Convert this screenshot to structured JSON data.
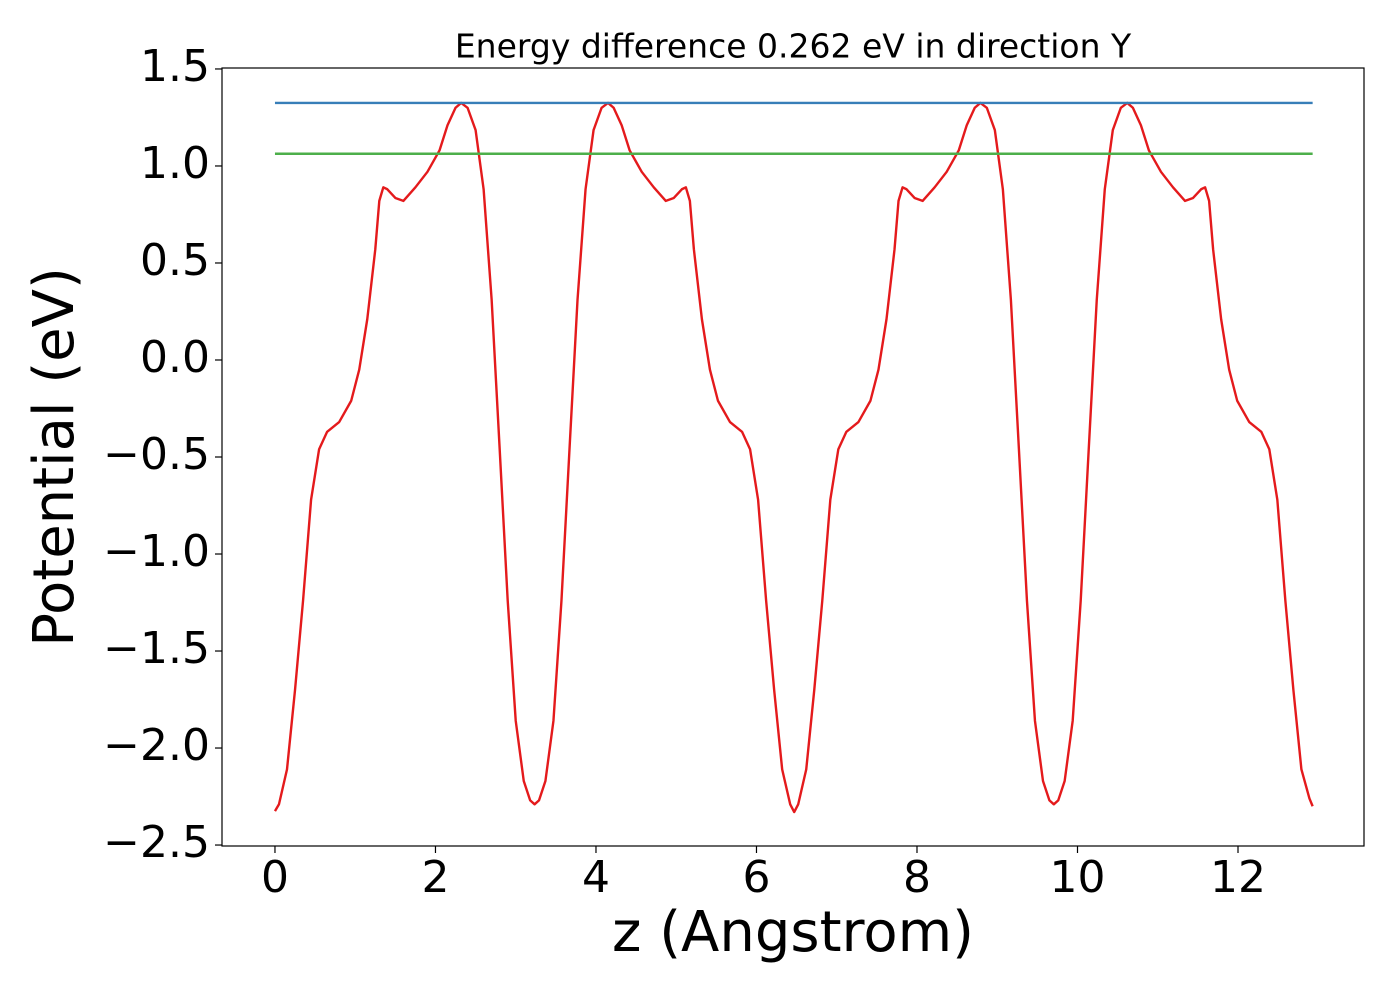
{
  "chart_data": {
    "type": "line",
    "title": "Energy difference 0.262 eV in direction Y",
    "xlabel": "z (Angstrom)",
    "ylabel": "Potential (eV)",
    "xlim": [
      -0.66,
      13.57
    ],
    "ylim": [
      -2.505,
      1.505
    ],
    "xticks": [
      0,
      2,
      4,
      6,
      8,
      10,
      12
    ],
    "yticks": [
      {
        "value": 1.5,
        "label": "1.5"
      },
      {
        "value": 1,
        "label": "1.0"
      },
      {
        "value": 0.5,
        "label": "0.5"
      },
      {
        "value": 0,
        "label": "0.0"
      },
      {
        "value": -0.5,
        "label": "−0.5"
      },
      {
        "value": -1,
        "label": "−1.0"
      },
      {
        "value": -1.5,
        "label": "−1.5"
      },
      {
        "value": -2,
        "label": "−2.0"
      },
      {
        "value": -2.5,
        "label": "−2.5"
      }
    ],
    "grid": false,
    "series": [
      {
        "color": "#e41a1c",
        "x": [
          0,
          0.05,
          0.15,
          0.25,
          0.35,
          0.45,
          0.55,
          0.65,
          0.8,
          0.95,
          1.05,
          1.15,
          1.25,
          1.3,
          1.35,
          1.4,
          1.5,
          1.6,
          1.75,
          1.9,
          2.05,
          2.15,
          2.25,
          2.32,
          2.4,
          2.5,
          2.6,
          2.7,
          2.8,
          2.9,
          3.0,
          3.1,
          3.18,
          3.235,
          3.29,
          3.37,
          3.47,
          3.57,
          3.67,
          3.77,
          3.87,
          3.97,
          4.07,
          4.15,
          4.22,
          4.32,
          4.42,
          4.57,
          4.72,
          4.87,
          4.97,
          5.07,
          5.12,
          5.17,
          5.22,
          5.32,
          5.42,
          5.52,
          5.67,
          5.82,
          5.92,
          6.02,
          6.12,
          6.22,
          6.32,
          6.42,
          6.47,
          6.52,
          6.62,
          6.72,
          6.82,
          6.92,
          7.02,
          7.12,
          7.27,
          7.42,
          7.52,
          7.62,
          7.72,
          7.77,
          7.82,
          7.87,
          7.97,
          8.07,
          8.22,
          8.37,
          8.52,
          8.62,
          8.72,
          8.79,
          8.87,
          8.97,
          9.07,
          9.17,
          9.27,
          9.37,
          9.47,
          9.57,
          9.65,
          9.705,
          9.76,
          9.84,
          9.94,
          10.04,
          10.14,
          10.24,
          10.34,
          10.44,
          10.54,
          10.62,
          10.69,
          10.79,
          10.89,
          11.04,
          11.19,
          11.34,
          11.44,
          11.54,
          11.59,
          11.64,
          11.69,
          11.79,
          11.89,
          11.99,
          12.14,
          12.29,
          12.39,
          12.49,
          12.59,
          12.69,
          12.79,
          12.89,
          12.93
        ],
        "values": [
          -2.325,
          -2.29,
          -2.11,
          -1.7,
          -1.24,
          -0.72,
          -0.46,
          -0.37,
          -0.32,
          -0.21,
          -0.05,
          0.21,
          0.57,
          0.82,
          0.89,
          0.88,
          0.835,
          0.82,
          0.89,
          0.97,
          1.08,
          1.21,
          1.3,
          1.325,
          1.3,
          1.185,
          0.88,
          0.31,
          -0.46,
          -1.24,
          -1.86,
          -2.17,
          -2.27,
          -2.29,
          -2.27,
          -2.17,
          -1.86,
          -1.24,
          -0.46,
          0.31,
          0.88,
          1.185,
          1.3,
          1.325,
          1.3,
          1.21,
          1.08,
          0.97,
          0.89,
          0.82,
          0.835,
          0.88,
          0.89,
          0.82,
          0.57,
          0.21,
          -0.05,
          -0.21,
          -0.32,
          -0.37,
          -0.46,
          -0.72,
          -1.24,
          -1.7,
          -2.11,
          -2.29,
          -2.33,
          -2.29,
          -2.11,
          -1.7,
          -1.24,
          -0.72,
          -0.46,
          -0.37,
          -0.32,
          -0.21,
          -0.05,
          0.21,
          0.57,
          0.82,
          0.89,
          0.88,
          0.835,
          0.82,
          0.89,
          0.97,
          1.08,
          1.21,
          1.3,
          1.325,
          1.3,
          1.185,
          0.88,
          0.31,
          -0.46,
          -1.24,
          -1.86,
          -2.17,
          -2.27,
          -2.29,
          -2.27,
          -2.17,
          -1.86,
          -1.24,
          -0.46,
          0.31,
          0.88,
          1.185,
          1.3,
          1.325,
          1.3,
          1.21,
          1.08,
          0.97,
          0.89,
          0.82,
          0.835,
          0.88,
          0.89,
          0.82,
          0.57,
          0.21,
          -0.05,
          -0.21,
          -0.32,
          -0.37,
          -0.46,
          -0.72,
          -1.24,
          -1.7,
          -2.11,
          -2.26,
          -2.3
        ]
      },
      {
        "color": "#377eb8",
        "x": [
          0,
          12.93
        ],
        "values": [
          1.325,
          1.325
        ]
      },
      {
        "color": "#4daf4a",
        "x": [
          0,
          12.93
        ],
        "values": [
          1.063,
          1.063
        ]
      }
    ]
  }
}
